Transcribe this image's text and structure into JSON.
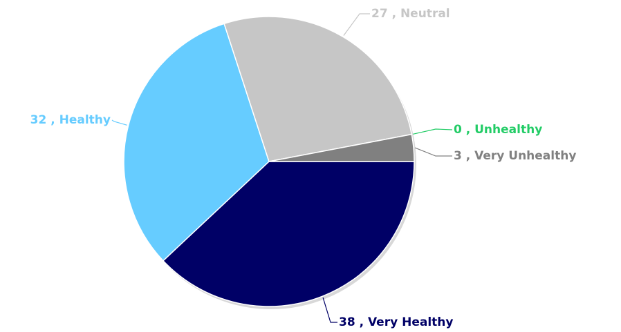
{
  "chart_data": {
    "type": "pie",
    "categories": [
      "Very Healthy",
      "Healthy",
      "Neutral",
      "Unhealthy",
      "Very Unhealthy"
    ],
    "values": [
      38,
      32,
      27,
      0,
      3
    ],
    "value_labels": [
      "38 , Very Healthy",
      "32 , Healthy",
      "27 , Neutral",
      "0 , Unhealthy",
      "3 , Very Unhealthy"
    ],
    "colors": [
      "#000066",
      "#66ccff",
      "#c6c6c6",
      "#22cc66",
      "#808080"
    ]
  }
}
